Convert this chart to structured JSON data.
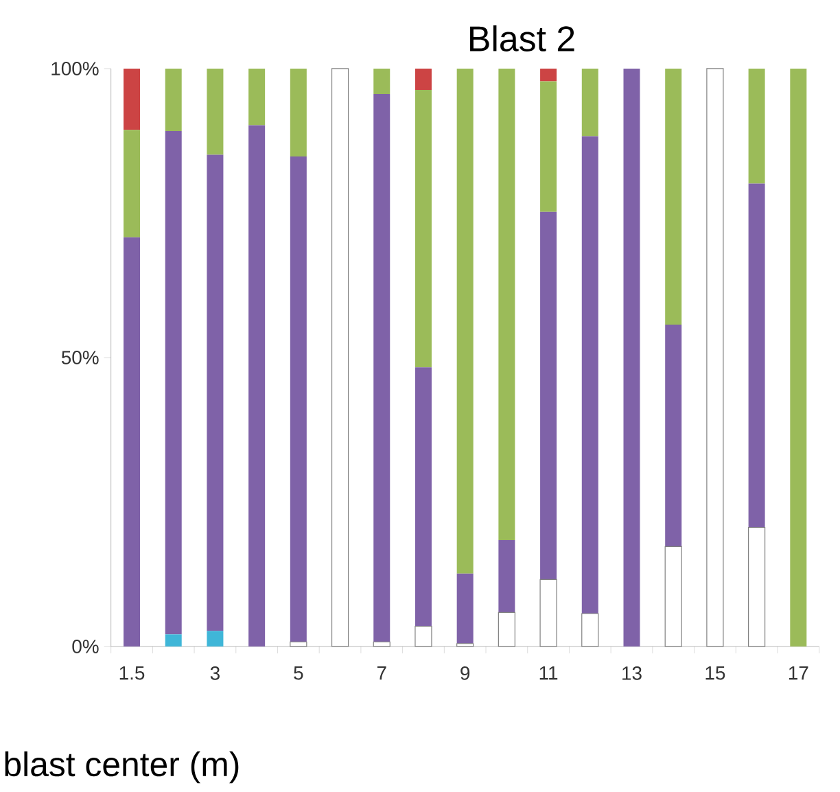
{
  "chart_data": {
    "type": "bar",
    "stacked": true,
    "title": "Blast 2",
    "xlabel": "blast center (m)",
    "categories": [
      "1.5",
      null,
      "3",
      null,
      "5",
      null,
      "7",
      null,
      "9",
      null,
      "11",
      null,
      "13",
      null,
      "15",
      null,
      "17"
    ],
    "series": [
      {
        "color": "#ffffff",
        "values": [
          0,
          0,
          0,
          0,
          0.8,
          100,
          0.8,
          3.5,
          0.5,
          5.9,
          11.6,
          5.7,
          0,
          17.3,
          100,
          20.6,
          0
        ]
      },
      {
        "color": "#3fb6d8",
        "values": [
          0,
          2.1,
          2.7,
          0,
          0,
          0,
          0,
          0,
          0,
          0,
          0,
          0,
          0,
          0,
          0,
          0,
          0
        ]
      },
      {
        "color": "#7f62a8",
        "values": [
          70.8,
          87.1,
          82.4,
          90.2,
          84.0,
          0,
          94.8,
          44.8,
          12.1,
          12.5,
          63.6,
          82.6,
          100,
          38.4,
          0,
          59.5,
          0
        ]
      },
      {
        "color": "#9bbb59",
        "values": [
          18.6,
          10.8,
          14.9,
          9.8,
          15.2,
          0,
          4.4,
          48.0,
          87.4,
          81.6,
          22.6,
          11.7,
          0,
          44.3,
          0,
          19.9,
          100
        ]
      },
      {
        "color": "#cc4444",
        "values": [
          10.6,
          0,
          0,
          0,
          0,
          0,
          0,
          3.7,
          0,
          0,
          2.2,
          0,
          0,
          0,
          0,
          0,
          0
        ]
      }
    ],
    "ylim": [
      0,
      100
    ],
    "yticks": [
      {
        "value": 0,
        "label": "0%"
      },
      {
        "value": 50,
        "label": "50%"
      },
      {
        "value": 100,
        "label": "100%"
      }
    ],
    "grid": false
  }
}
